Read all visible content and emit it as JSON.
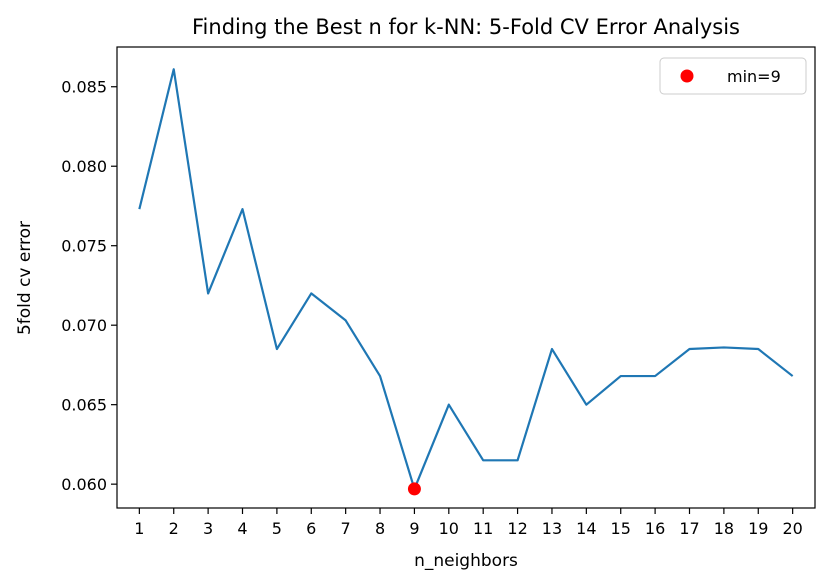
{
  "chart_data": {
    "type": "line",
    "title": "Finding the Best n for k-NN: 5-Fold CV Error Analysis",
    "xlabel": "n_neighbors",
    "ylabel": "5fold cv error",
    "x": [
      1,
      2,
      3,
      4,
      5,
      6,
      7,
      8,
      9,
      10,
      11,
      12,
      13,
      14,
      15,
      16,
      17,
      18,
      19,
      20
    ],
    "xlim": [
      0.35,
      20.65
    ],
    "ylim": [
      0.0585,
      0.0875
    ],
    "yticks": [
      0.06,
      0.065,
      0.07,
      0.075,
      0.08,
      0.085
    ],
    "ytick_labels": [
      "0.060",
      "0.065",
      "0.070",
      "0.075",
      "0.080",
      "0.085"
    ],
    "series": [
      {
        "color": "#1f77b4",
        "values": [
          0.0773,
          0.0861,
          0.072,
          0.0773,
          0.0685,
          0.072,
          0.0703,
          0.0668,
          0.0597,
          0.065,
          0.0615,
          0.0615,
          0.0685,
          0.065,
          0.0668,
          0.0668,
          0.0685,
          0.0686,
          0.0685,
          0.0668
        ]
      }
    ],
    "highlight_point": {
      "name": "min=9",
      "x": 9,
      "y": 0.0597,
      "color": "#ff0000"
    },
    "legend": {
      "position": "top-right",
      "entries": [
        "min=9"
      ]
    },
    "grid": false
  }
}
